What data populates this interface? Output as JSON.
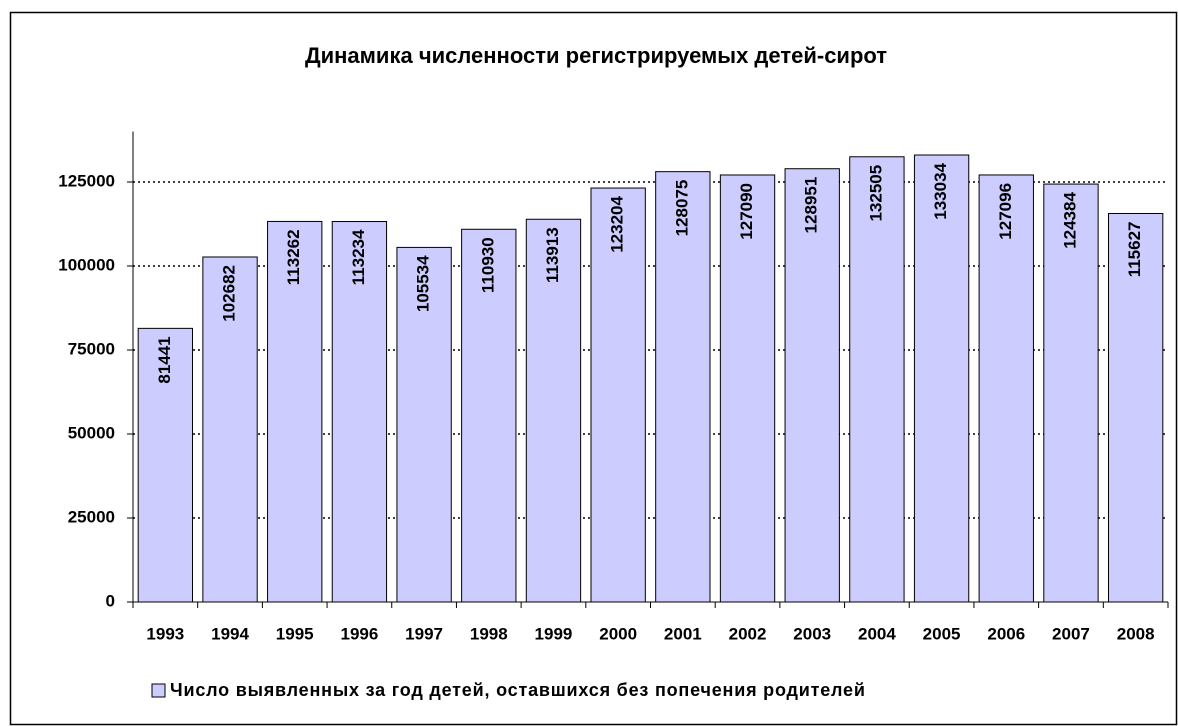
{
  "chart_data": {
    "type": "bar",
    "title": "Динамика численности регистрируемых детей-сирот",
    "categories": [
      "1993",
      "1994",
      "1995",
      "1996",
      "1997",
      "1998",
      "1999",
      "2000",
      "2001",
      "2002",
      "2003",
      "2004",
      "2005",
      "2006",
      "2007",
      "2008"
    ],
    "series": [
      {
        "name": "Число выявленных за год детей, оставшихся без попечения родителей",
        "color": "#ccccff",
        "values": [
          81441,
          102682,
          113262,
          113234,
          105534,
          110930,
          113913,
          123204,
          128075,
          127090,
          128951,
          132505,
          133034,
          127096,
          124384,
          115627
        ]
      }
    ],
    "ylim": [
      0,
      140000
    ],
    "yticks": [
      0,
      25000,
      50000,
      75000,
      100000,
      125000
    ],
    "grid": true,
    "legend": "bottom",
    "data_labels": true
  }
}
